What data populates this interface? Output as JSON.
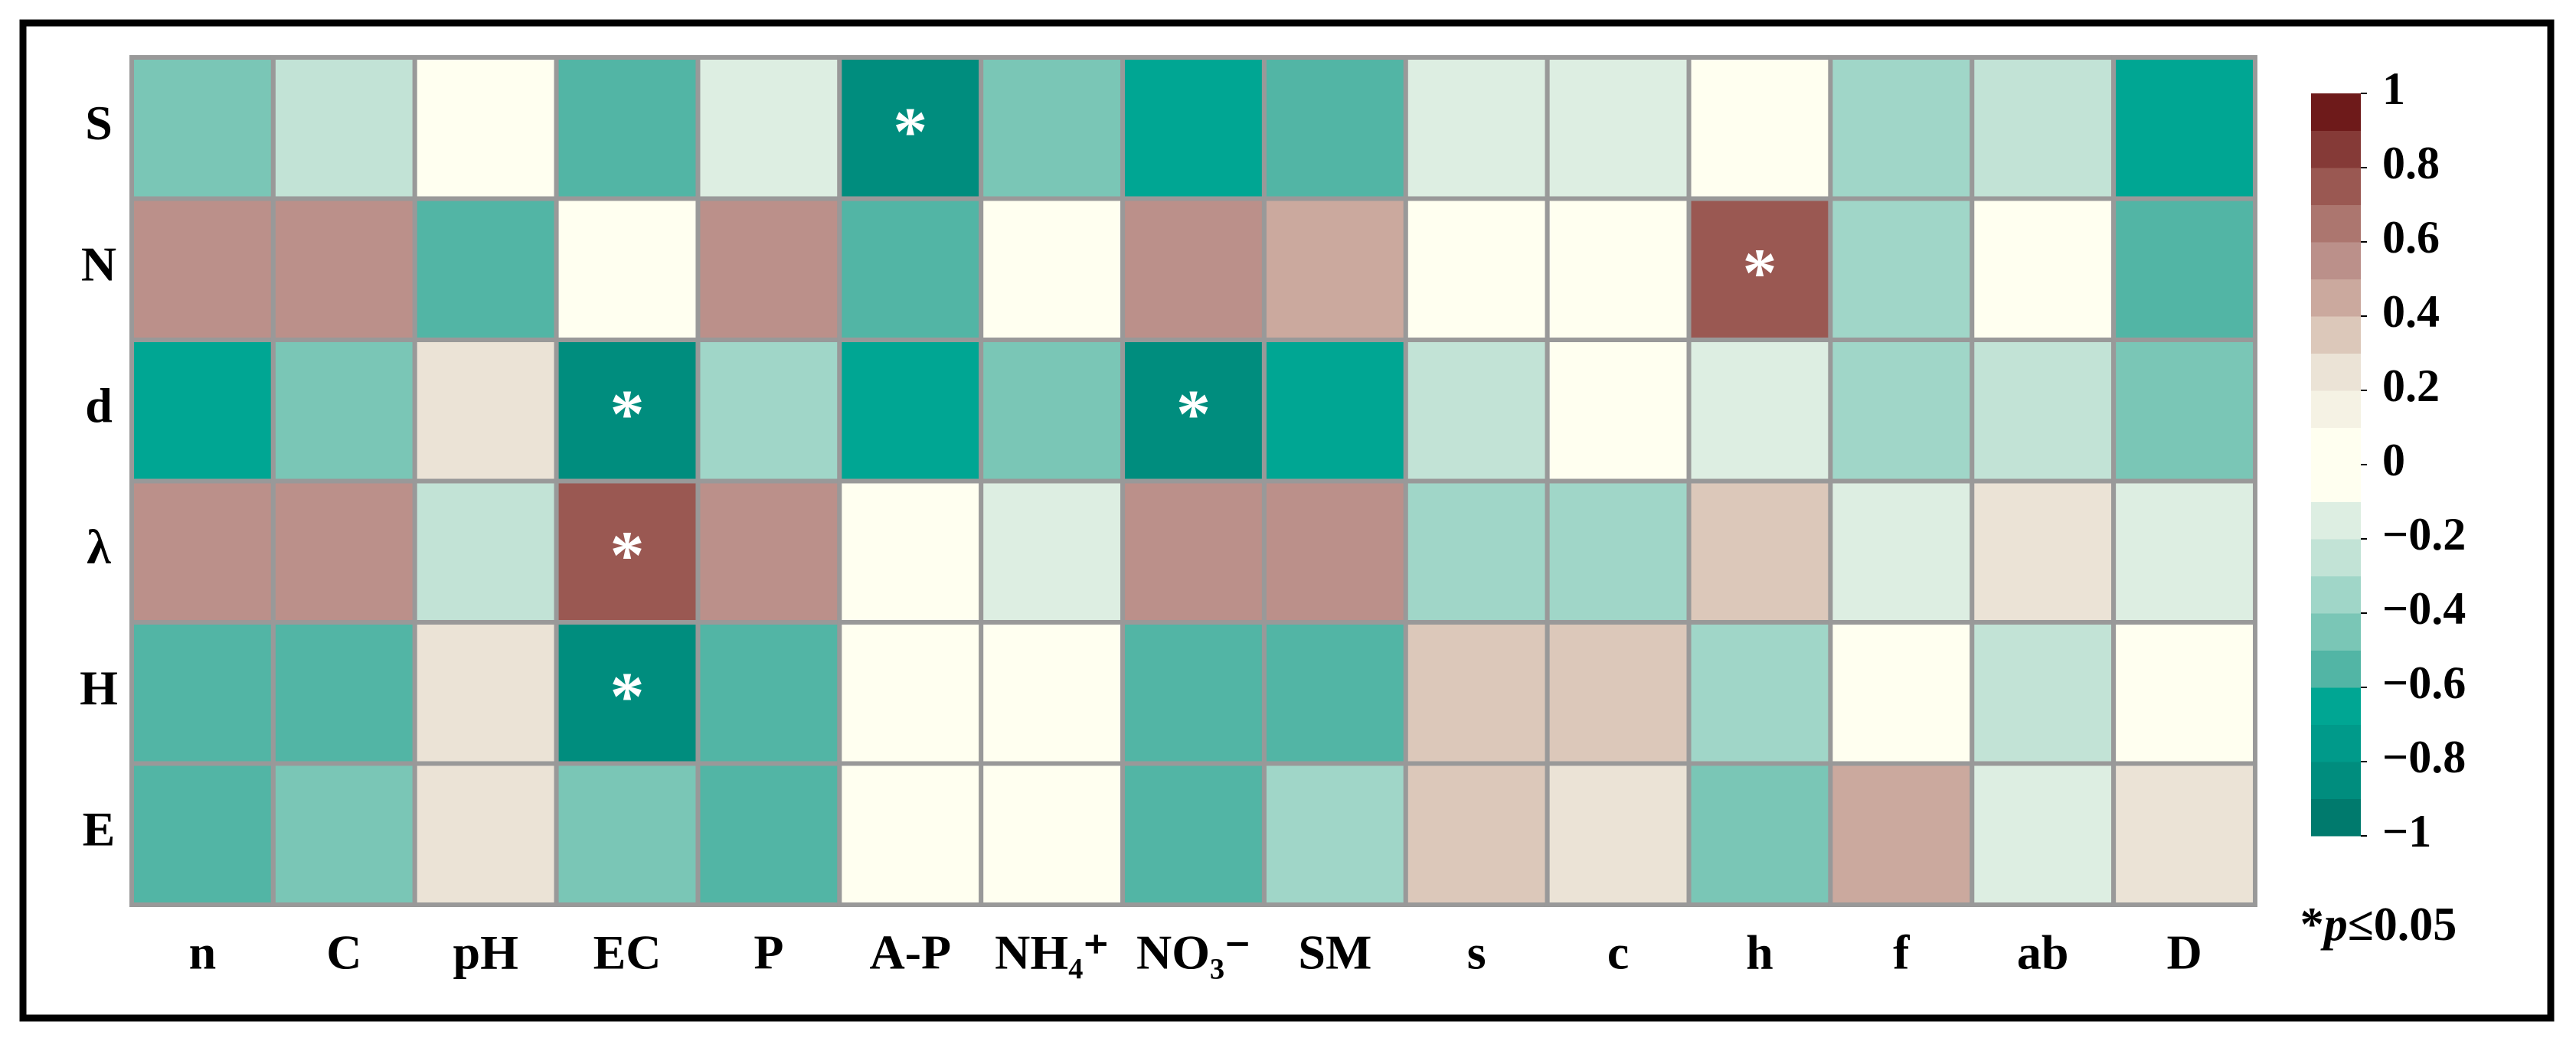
{
  "chart_data": {
    "type": "heatmap",
    "rows": [
      "S",
      "N",
      "d",
      "λ",
      "H",
      "E"
    ],
    "columns": [
      "n",
      "C",
      "pH",
      "EC",
      "P",
      "A-P",
      "NH₄⁺",
      "NO₃⁻",
      "SM",
      "s",
      "c",
      "h",
      "f",
      "ab",
      "D"
    ],
    "values": [
      [
        -0.45,
        -0.25,
        -0.05,
        -0.55,
        -0.15,
        -0.85,
        -0.45,
        -0.7,
        -0.55,
        -0.15,
        -0.15,
        0.05,
        -0.35,
        -0.25,
        -0.7
      ],
      [
        0.55,
        0.55,
        -0.55,
        0.05,
        0.55,
        -0.55,
        0.05,
        0.55,
        0.45,
        0.05,
        0.05,
        0.75,
        -0.35,
        0.05,
        -0.55
      ],
      [
        -0.7,
        -0.45,
        0.25,
        -0.85,
        -0.35,
        -0.7,
        -0.45,
        -0.85,
        -0.7,
        -0.25,
        0.05,
        -0.15,
        -0.35,
        -0.25,
        -0.45
      ],
      [
        0.55,
        0.55,
        -0.25,
        0.75,
        0.55,
        0.05,
        -0.15,
        0.55,
        0.55,
        -0.35,
        -0.35,
        0.35,
        -0.15,
        0.25,
        -0.15
      ],
      [
        -0.55,
        -0.55,
        0.25,
        -0.85,
        -0.55,
        0.05,
        0.05,
        -0.55,
        -0.55,
        0.35,
        0.35,
        -0.35,
        0.05,
        -0.25,
        0.05
      ],
      [
        -0.55,
        -0.45,
        0.25,
        -0.45,
        -0.55,
        0.05,
        0.05,
        -0.55,
        -0.35,
        0.35,
        0.25,
        -0.45,
        0.45,
        -0.15,
        0.25
      ]
    ],
    "cell_labels": [
      [
        null,
        null,
        null,
        null,
        null,
        "*",
        null,
        null,
        null,
        null,
        null,
        null,
        null,
        null,
        null
      ],
      [
        null,
        null,
        null,
        null,
        null,
        null,
        null,
        null,
        null,
        null,
        null,
        "*",
        null,
        null,
        null
      ],
      [
        null,
        null,
        null,
        "*",
        null,
        null,
        null,
        "*",
        null,
        null,
        null,
        null,
        null,
        null,
        null
      ],
      [
        null,
        null,
        null,
        "*",
        null,
        null,
        null,
        null,
        null,
        null,
        null,
        null,
        null,
        null,
        null
      ],
      [
        null,
        null,
        null,
        "*",
        null,
        null,
        null,
        null,
        null,
        null,
        null,
        null,
        null,
        null,
        null
      ],
      [
        null,
        null,
        null,
        null,
        null,
        null,
        null,
        null,
        null,
        null,
        null,
        null,
        null,
        null,
        null
      ]
    ],
    "colorbar_lim": [
      -1,
      1
    ],
    "colorbar_ticks": [
      {
        "value": -1,
        "label": "−1"
      },
      {
        "value": -0.8,
        "label": "−0.8"
      },
      {
        "value": -0.6,
        "label": "−0.6"
      },
      {
        "value": -0.4,
        "label": "−0.4"
      },
      {
        "value": -0.2,
        "label": "−0.2"
      },
      0,
      0.2,
      0.4,
      0.6,
      0.8,
      1
    ],
    "colors": [
      "#007a6d",
      "#008d7e",
      "#009a8a",
      "#00a693",
      "#52b5a5",
      "#7ac6b6",
      "#a0d6c8",
      "#c2e3d6",
      "#ddeee2",
      "#fffff0",
      "#fffff0",
      "#f5f2e4",
      "#ebe3d6",
      "#dcc8ba",
      "#cba99e",
      "#bb908a",
      "#ac766f",
      "#9a5852",
      "#853a37",
      "#6e1a1a"
    ],
    "note": {
      "prefix": "*",
      "variable": "p",
      "suffix": "≤0.05"
    }
  }
}
